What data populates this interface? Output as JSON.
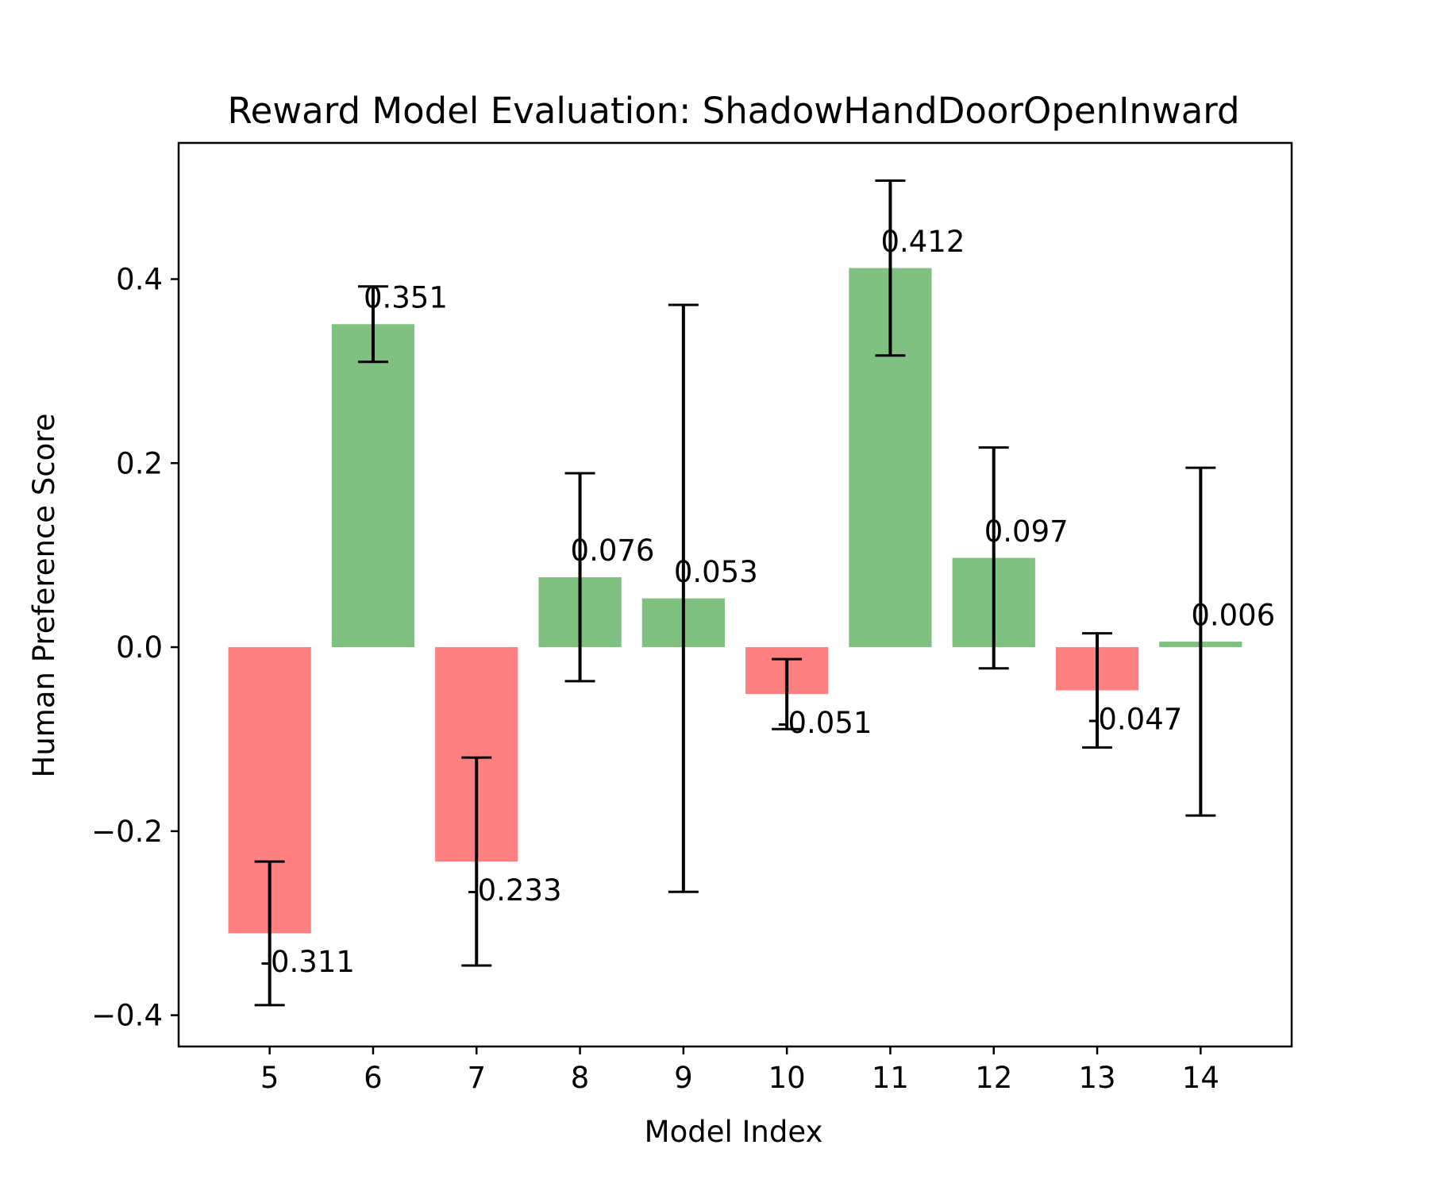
{
  "chart_data": {
    "type": "bar",
    "title": "Reward Model Evaluation: ShadowHandDoorOpenInward",
    "xlabel": "Model Index",
    "ylabel": "Human Preference Score",
    "categories": [
      "5",
      "6",
      "7",
      "8",
      "9",
      "10",
      "11",
      "12",
      "13",
      "14"
    ],
    "values": [
      -0.311,
      0.351,
      -0.233,
      0.076,
      0.053,
      -0.051,
      0.412,
      0.097,
      -0.047,
      0.006
    ],
    "value_labels": [
      "-0.311",
      "0.351",
      "-0.233",
      "0.076",
      "0.053",
      "-0.051",
      "0.412",
      "0.097",
      "-0.047",
      "0.006"
    ],
    "error": [
      0.078,
      0.041,
      0.113,
      0.113,
      0.319,
      0.038,
      0.095,
      0.12,
      0.062,
      0.189
    ],
    "ylim": [
      -0.434,
      0.548
    ],
    "yticks": [
      -0.4,
      -0.2,
      0.0,
      0.2,
      0.4
    ],
    "ytick_labels": [
      "−0.4",
      "−0.2",
      "0.0",
      "0.2",
      "0.4"
    ],
    "grid": false,
    "legend": "none",
    "colors": {
      "positive": "#80c080",
      "negative": "#ff8080",
      "errorbar": "#000000",
      "axes": "#000000",
      "background": "#ffffff"
    }
  }
}
